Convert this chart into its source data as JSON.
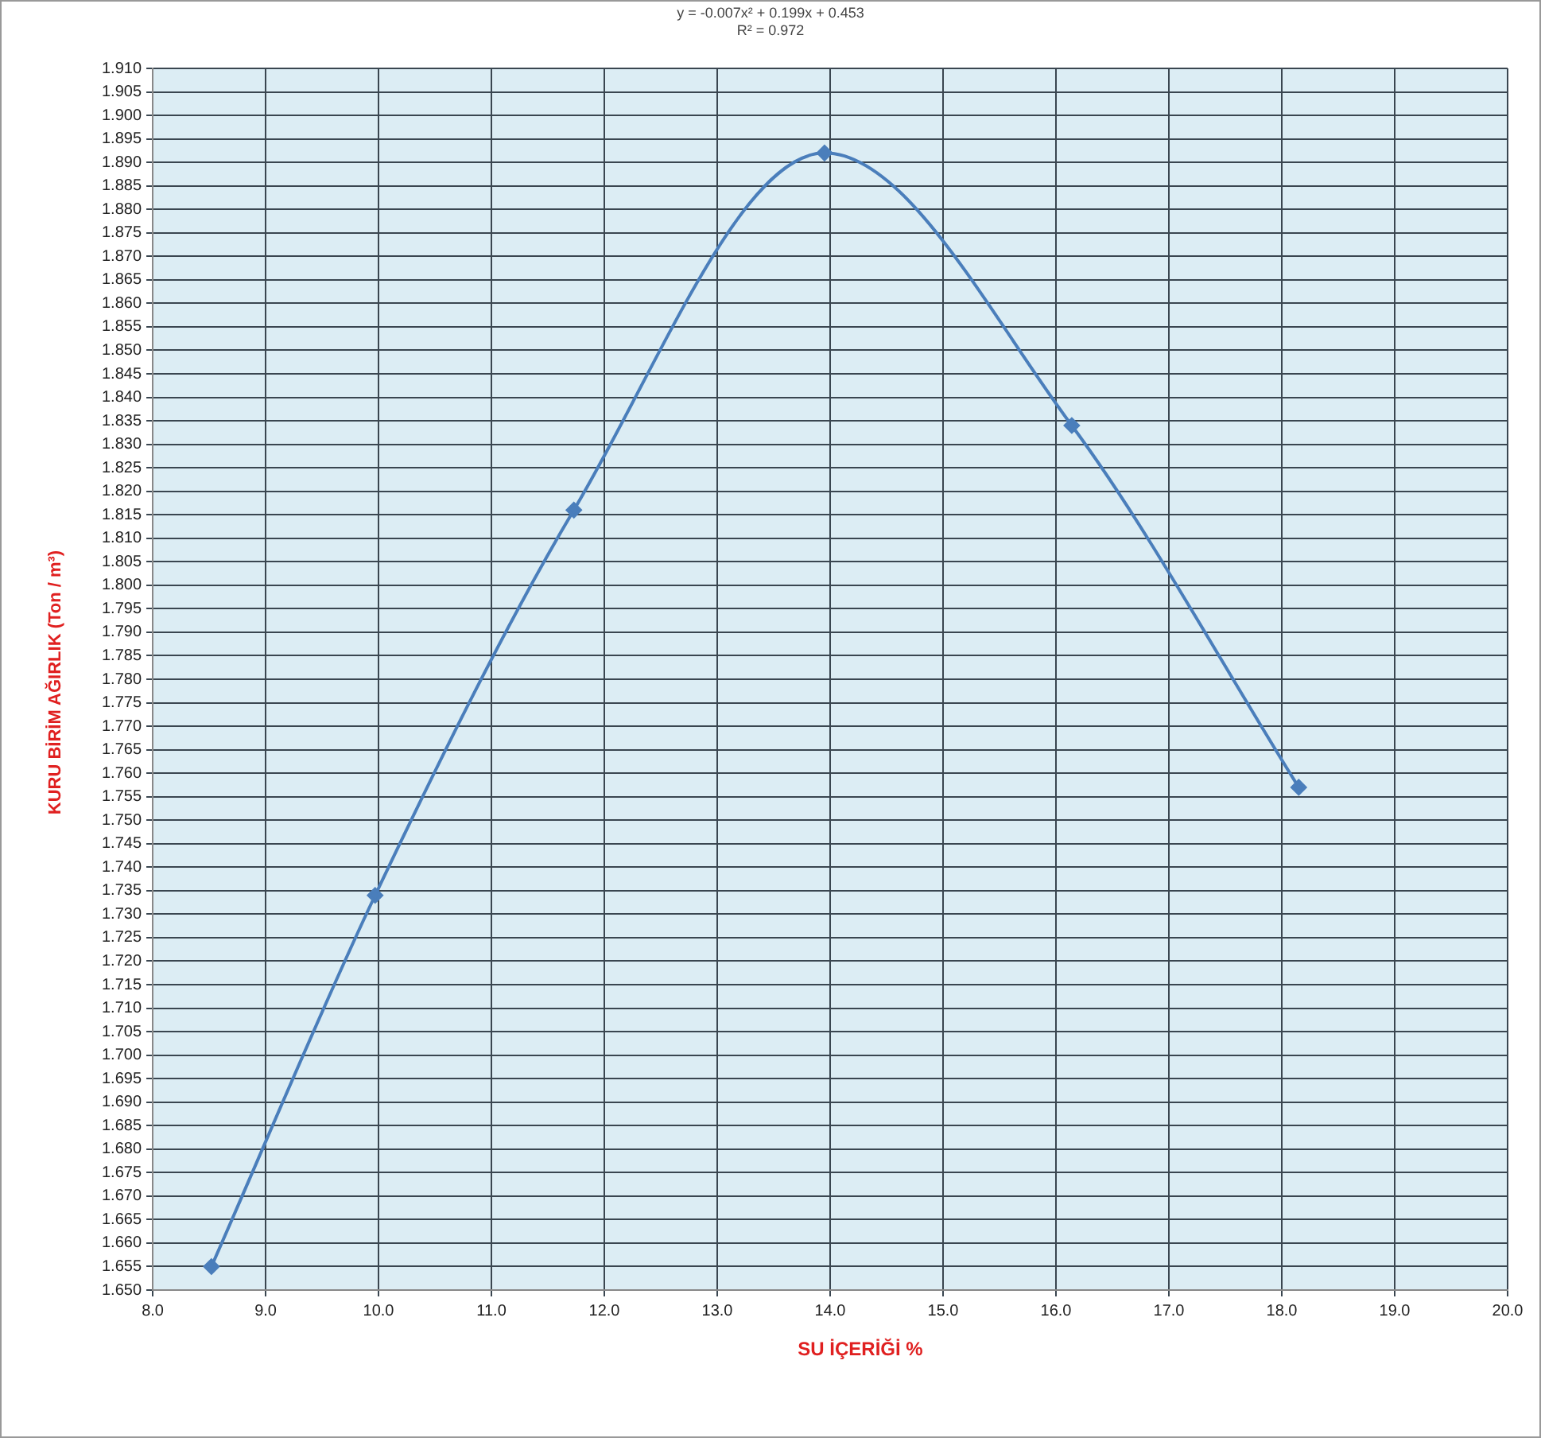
{
  "chart_data": {
    "type": "line",
    "xlabel": "SU İÇERİĞİ %",
    "ylabel": "KURU BİRİM AĞIRLIK (Ton / m³)",
    "annotations": [
      "y = -0.007x² + 0.199x + 0.453",
      "R² = 0.972"
    ],
    "series": [
      {
        "color": "#4a7ebb",
        "x": [
          8.52,
          9.97,
          11.73,
          13.95,
          16.14,
          18.15
        ],
        "values": [
          1.655,
          1.734,
          1.816,
          1.892,
          1.834,
          1.757
        ]
      }
    ],
    "xlim": [
      8,
      20
    ],
    "xticks": [
      {
        "value": 8,
        "label": "8.0"
      },
      {
        "value": 9,
        "label": "9.0"
      },
      {
        "value": 10,
        "label": "10.0"
      },
      {
        "value": 11,
        "label": "11.0"
      },
      {
        "value": 12,
        "label": "12.0"
      },
      {
        "value": 13,
        "label": "13.0"
      },
      {
        "value": 14,
        "label": "14.0"
      },
      {
        "value": 15,
        "label": "15.0"
      },
      {
        "value": 16,
        "label": "16.0"
      },
      {
        "value": 17,
        "label": "17.0"
      },
      {
        "value": 18,
        "label": "18.0"
      },
      {
        "value": 19,
        "label": "19.0"
      },
      {
        "value": 20,
        "label": "20.0"
      }
    ],
    "ylim": [
      1.65,
      1.91
    ],
    "yticks": [
      {
        "value": 1.65,
        "label": "1.650"
      },
      1.655,
      {
        "value": 1.66,
        "label": "1.660"
      },
      1.665,
      {
        "value": 1.67,
        "label": "1.670"
      },
      1.675,
      {
        "value": 1.68,
        "label": "1.680"
      },
      1.685,
      {
        "value": 1.69,
        "label": "1.690"
      },
      1.695,
      {
        "value": 1.7,
        "label": "1.700"
      },
      1.705,
      {
        "value": 1.71,
        "label": "1.710"
      },
      1.715,
      {
        "value": 1.72,
        "label": "1.720"
      },
      1.725,
      {
        "value": 1.73,
        "label": "1.730"
      },
      1.735,
      {
        "value": 1.74,
        "label": "1.740"
      },
      1.745,
      {
        "value": 1.75,
        "label": "1.750"
      },
      1.755,
      {
        "value": 1.76,
        "label": "1.760"
      },
      1.765,
      {
        "value": 1.77,
        "label": "1.770"
      },
      1.775,
      {
        "value": 1.78,
        "label": "1.780"
      },
      1.785,
      {
        "value": 1.79,
        "label": "1.790"
      },
      1.795,
      {
        "value": 1.8,
        "label": "1.800"
      },
      1.805,
      {
        "value": 1.81,
        "label": "1.810"
      },
      1.815,
      {
        "value": 1.82,
        "label": "1.820"
      },
      1.825,
      {
        "value": 1.83,
        "label": "1.830"
      },
      1.835,
      {
        "value": 1.84,
        "label": "1.840"
      },
      1.845,
      {
        "value": 1.85,
        "label": "1.850"
      },
      1.855,
      {
        "value": 1.86,
        "label": "1.860"
      },
      1.865,
      {
        "value": 1.87,
        "label": "1.870"
      },
      1.875,
      {
        "value": 1.88,
        "label": "1.880"
      },
      1.885,
      {
        "value": 1.89,
        "label": "1.890"
      },
      1.895,
      {
        "value": 1.9,
        "label": "1.900"
      },
      1.905,
      {
        "value": 1.91,
        "label": "1.910"
      }
    ],
    "grid": true,
    "marker": "diamond",
    "line_style": "solid",
    "legend": false
  }
}
